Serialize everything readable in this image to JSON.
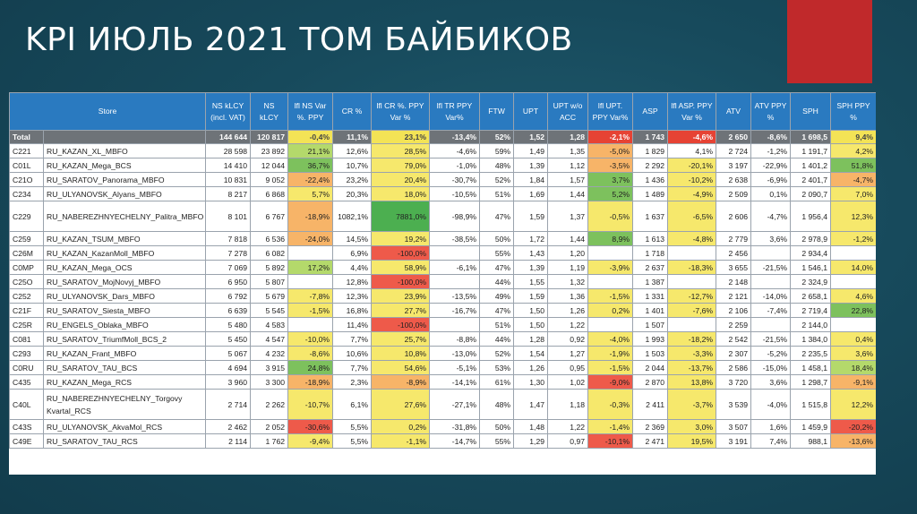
{
  "slide": {
    "title": "KPI ИЮЛЬ 2021 ТОМ БАЙБИКОВ"
  },
  "table": {
    "headers": {
      "store": "Store",
      "ns_lcy_incl_vat": "NS kLCY (incl. VAT)",
      "ns_lcy": "NS kLCY",
      "lfl_ns_var": "lfl NS Var %. PPY",
      "cr": "CR %",
      "lfl_cr": "lfl CR %. PPY Var %",
      "lfl_tr": "lfl TR PPY Var%",
      "ftw": "FTW",
      "upt": "UPT",
      "upt_wo_acc": "UPT w/o ACC",
      "lfl_upt": "lfl UPT. PPY Var%",
      "asp": "ASP",
      "lfl_asp": "lfl ASP. PPY Var %",
      "atv": "ATV",
      "atv_ppy": "ATV PPY %",
      "sph": "SPH",
      "sph_ppy": "SPH PPY %"
    },
    "rows": [
      {
        "code": "Total",
        "store": "",
        "ns_vat": "144 644",
        "ns": "120 817",
        "lfl_ns": "-0,4%",
        "cr": "11,1%",
        "lfl_cr": "23,1%",
        "lfl_tr": "-13,4%",
        "ftw": "52%",
        "upt": "1,52",
        "upt_wo": "1,28",
        "lfl_upt": "-2,1%",
        "asp": "1 743",
        "lfl_asp": "-4,6%",
        "atv": "2 650",
        "atv_ppy": "-8,6%",
        "sph": "1 698,5",
        "sph_ppy": "9,4%"
      },
      {
        "code": "C221",
        "store": "RU_KAZAN_XL_MBFO",
        "ns_vat": "28 598",
        "ns": "23 892",
        "lfl_ns": "21,1%",
        "cr": "12,6%",
        "lfl_cr": "28,5%",
        "lfl_tr": "-4,6%",
        "ftw": "59%",
        "upt": "1,49",
        "upt_wo": "1,35",
        "lfl_upt": "-5,0%",
        "asp": "1 829",
        "lfl_asp": "4,1%",
        "atv": "2 724",
        "atv_ppy": "-1,2%",
        "sph": "1 191,7",
        "sph_ppy": "4,2%"
      },
      {
        "code": "C01L",
        "store": "RU_KAZAN_Mega_BCS",
        "ns_vat": "14 410",
        "ns": "12 044",
        "lfl_ns": "36,7%",
        "cr": "10,7%",
        "lfl_cr": "79,0%",
        "lfl_tr": "-1,0%",
        "ftw": "48%",
        "upt": "1,39",
        "upt_wo": "1,12",
        "lfl_upt": "-3,5%",
        "asp": "2 292",
        "lfl_asp": "-20,1%",
        "atv": "3 197",
        "atv_ppy": "-22,9%",
        "sph": "1 401,2",
        "sph_ppy": "51,8%"
      },
      {
        "code": "C21O",
        "store": "RU_SARATOV_Panorama_MBFO",
        "ns_vat": "10 831",
        "ns": "9 052",
        "lfl_ns": "-22,4%",
        "cr": "23,2%",
        "lfl_cr": "20,4%",
        "lfl_tr": "-30,7%",
        "ftw": "52%",
        "upt": "1,84",
        "upt_wo": "1,57",
        "lfl_upt": "3,7%",
        "asp": "1 436",
        "lfl_asp": "-10,2%",
        "atv": "2 638",
        "atv_ppy": "-6,9%",
        "sph": "2 401,7",
        "sph_ppy": "-4,7%"
      },
      {
        "code": "C234",
        "store": "RU_ULYANOVSK_Alyans_MBFO",
        "ns_vat": "8 217",
        "ns": "6 868",
        "lfl_ns": "5,7%",
        "cr": "20,3%",
        "lfl_cr": "18,0%",
        "lfl_tr": "-10,5%",
        "ftw": "51%",
        "upt": "1,69",
        "upt_wo": "1,44",
        "lfl_upt": "5,2%",
        "asp": "1 489",
        "lfl_asp": "-4,9%",
        "atv": "2 509",
        "atv_ppy": "0,1%",
        "sph": "2 090,7",
        "sph_ppy": "7,0%"
      },
      {
        "code": "C229",
        "store": "RU_NABEREZHNYECHELNY_Palitra_MBFO",
        "ns_vat": "8 101",
        "ns": "6 767",
        "lfl_ns": "-18,9%",
        "cr": "1082,1%",
        "lfl_cr": "7881,0%",
        "lfl_tr": "-98,9%",
        "ftw": "47%",
        "upt": "1,59",
        "upt_wo": "1,37",
        "lfl_upt": "-0,5%",
        "asp": "1 637",
        "lfl_asp": "-6,5%",
        "atv": "2 606",
        "atv_ppy": "-4,7%",
        "sph": "1 956,4",
        "sph_ppy": "12,3%"
      },
      {
        "code": "C259",
        "store": "RU_KAZAN_TSUM_MBFO",
        "ns_vat": "7 818",
        "ns": "6 536",
        "lfl_ns": "-24,0%",
        "cr": "14,5%",
        "lfl_cr": "19,2%",
        "lfl_tr": "-38,5%",
        "ftw": "50%",
        "upt": "1,72",
        "upt_wo": "1,44",
        "lfl_upt": "8,9%",
        "asp": "1 613",
        "lfl_asp": "-4,8%",
        "atv": "2 779",
        "atv_ppy": "3,6%",
        "sph": "2 978,9",
        "sph_ppy": "-1,2%"
      },
      {
        "code": "C26M",
        "store": "RU_KAZAN_KazanMoll_MBFO",
        "ns_vat": "7 278",
        "ns": "6 082",
        "lfl_ns": "",
        "cr": "6,9%",
        "lfl_cr": "-100,0%",
        "lfl_tr": "",
        "ftw": "55%",
        "upt": "1,43",
        "upt_wo": "1,20",
        "lfl_upt": "",
        "asp": "1 718",
        "lfl_asp": "",
        "atv": "2 456",
        "atv_ppy": "",
        "sph": "2 934,4",
        "sph_ppy": ""
      },
      {
        "code": "C0MP",
        "store": "RU_KAZAN_Mega_OCS",
        "ns_vat": "7 069",
        "ns": "5 892",
        "lfl_ns": "17,2%",
        "cr": "4,4%",
        "lfl_cr": "58,9%",
        "lfl_tr": "-6,1%",
        "ftw": "47%",
        "upt": "1,39",
        "upt_wo": "1,19",
        "lfl_upt": "-3,9%",
        "asp": "2 637",
        "lfl_asp": "-18,3%",
        "atv": "3 655",
        "atv_ppy": "-21,5%",
        "sph": "1 546,1",
        "sph_ppy": "14,0%"
      },
      {
        "code": "C25O",
        "store": "RU_SARATOV_MojNovyj_MBFO",
        "ns_vat": "6 950",
        "ns": "5 807",
        "lfl_ns": "",
        "cr": "12,8%",
        "lfl_cr": "-100,0%",
        "lfl_tr": "",
        "ftw": "44%",
        "upt": "1,55",
        "upt_wo": "1,32",
        "lfl_upt": "",
        "asp": "1 387",
        "lfl_asp": "",
        "atv": "2 148",
        "atv_ppy": "",
        "sph": "2 324,9",
        "sph_ppy": ""
      },
      {
        "code": "C252",
        "store": "RU_ULYANOVSK_Dars_MBFO",
        "ns_vat": "6 792",
        "ns": "5 679",
        "lfl_ns": "-7,8%",
        "cr": "12,3%",
        "lfl_cr": "23,9%",
        "lfl_tr": "-13,5%",
        "ftw": "49%",
        "upt": "1,59",
        "upt_wo": "1,36",
        "lfl_upt": "-1,5%",
        "asp": "1 331",
        "lfl_asp": "-12,7%",
        "atv": "2 121",
        "atv_ppy": "-14,0%",
        "sph": "2 658,1",
        "sph_ppy": "4,6%"
      },
      {
        "code": "C21F",
        "store": "RU_SARATOV_Siesta_MBFO",
        "ns_vat": "6 639",
        "ns": "5 545",
        "lfl_ns": "-1,5%",
        "cr": "16,8%",
        "lfl_cr": "27,7%",
        "lfl_tr": "-16,7%",
        "ftw": "47%",
        "upt": "1,50",
        "upt_wo": "1,26",
        "lfl_upt": "0,2%",
        "asp": "1 401",
        "lfl_asp": "-7,6%",
        "atv": "2 106",
        "atv_ppy": "-7,4%",
        "sph": "2 719,4",
        "sph_ppy": "22,8%"
      },
      {
        "code": "C25R",
        "store": "RU_ENGELS_Oblaka_MBFO",
        "ns_vat": "5 480",
        "ns": "4 583",
        "lfl_ns": "",
        "cr": "11,4%",
        "lfl_cr": "-100,0%",
        "lfl_tr": "",
        "ftw": "51%",
        "upt": "1,50",
        "upt_wo": "1,22",
        "lfl_upt": "",
        "asp": "1 507",
        "lfl_asp": "",
        "atv": "2 259",
        "atv_ppy": "",
        "sph": "2 144,0",
        "sph_ppy": ""
      },
      {
        "code": "C081",
        "store": "RU_SARATOV_TriumfMoll_BCS_2",
        "ns_vat": "5 450",
        "ns": "4 547",
        "lfl_ns": "-10,0%",
        "cr": "7,7%",
        "lfl_cr": "25,7%",
        "lfl_tr": "-8,8%",
        "ftw": "44%",
        "upt": "1,28",
        "upt_wo": "0,92",
        "lfl_upt": "-4,0%",
        "asp": "1 993",
        "lfl_asp": "-18,2%",
        "atv": "2 542",
        "atv_ppy": "-21,5%",
        "sph": "1 384,0",
        "sph_ppy": "0,4%"
      },
      {
        "code": "C293",
        "store": "RU_KAZAN_Frant_MBFO",
        "ns_vat": "5 067",
        "ns": "4 232",
        "lfl_ns": "-8,6%",
        "cr": "10,6%",
        "lfl_cr": "10,8%",
        "lfl_tr": "-13,0%",
        "ftw": "52%",
        "upt": "1,54",
        "upt_wo": "1,27",
        "lfl_upt": "-1,9%",
        "asp": "1 503",
        "lfl_asp": "-3,3%",
        "atv": "2 307",
        "atv_ppy": "-5,2%",
        "sph": "2 235,5",
        "sph_ppy": "3,6%"
      },
      {
        "code": "C0RU",
        "store": "RU_SARATOV_TAU_BCS",
        "ns_vat": "4 694",
        "ns": "3 915",
        "lfl_ns": "24,8%",
        "cr": "7,7%",
        "lfl_cr": "54,6%",
        "lfl_tr": "-5,1%",
        "ftw": "53%",
        "upt": "1,26",
        "upt_wo": "0,95",
        "lfl_upt": "-1,5%",
        "asp": "2 044",
        "lfl_asp": "-13,7%",
        "atv": "2 586",
        "atv_ppy": "-15,0%",
        "sph": "1 458,1",
        "sph_ppy": "18,4%"
      },
      {
        "code": "C435",
        "store": "RU_KAZAN_Mega_RCS",
        "ns_vat": "3 960",
        "ns": "3 300",
        "lfl_ns": "-18,9%",
        "cr": "2,3%",
        "lfl_cr": "-8,9%",
        "lfl_tr": "-14,1%",
        "ftw": "61%",
        "upt": "1,30",
        "upt_wo": "1,02",
        "lfl_upt": "-9,0%",
        "asp": "2 870",
        "lfl_asp": "13,8%",
        "atv": "3 720",
        "atv_ppy": "3,6%",
        "sph": "1 298,7",
        "sph_ppy": "-9,1%"
      },
      {
        "code": "C40L",
        "store": "RU_NABEREZHNYECHELNY_Torgovy Kvartal_RCS",
        "ns_vat": "2 714",
        "ns": "2 262",
        "lfl_ns": "-10,7%",
        "cr": "6,1%",
        "lfl_cr": "27,6%",
        "lfl_tr": "-27,1%",
        "ftw": "48%",
        "upt": "1,47",
        "upt_wo": "1,18",
        "lfl_upt": "-0,3%",
        "asp": "2 411",
        "lfl_asp": "-3,7%",
        "atv": "3 539",
        "atv_ppy": "-4,0%",
        "sph": "1 515,8",
        "sph_ppy": "12,2%"
      },
      {
        "code": "C43S",
        "store": "RU_ULYANOVSK_AkvaMol_RCS",
        "ns_vat": "2 462",
        "ns": "2 052",
        "lfl_ns": "-30,6%",
        "cr": "5,5%",
        "lfl_cr": "0,2%",
        "lfl_tr": "-31,8%",
        "ftw": "50%",
        "upt": "1,48",
        "upt_wo": "1,22",
        "lfl_upt": "-1,4%",
        "asp": "2 369",
        "lfl_asp": "3,0%",
        "atv": "3 507",
        "atv_ppy": "1,6%",
        "sph": "1 459,9",
        "sph_ppy": "-20,2%"
      },
      {
        "code": "C49E",
        "store": "RU_SARATOV_TAU_RCS",
        "ns_vat": "2 114",
        "ns": "1 762",
        "lfl_ns": "-9,4%",
        "cr": "5,5%",
        "lfl_cr": "-1,1%",
        "lfl_tr": "-14,7%",
        "ftw": "55%",
        "upt": "1,29",
        "upt_wo": "0,97",
        "lfl_upt": "-10,1%",
        "asp": "2 471",
        "lfl_asp": "19,5%",
        "atv": "3 191",
        "atv_ppy": "7,4%",
        "sph": "988,1",
        "sph_ppy": "-13,6%"
      }
    ]
  },
  "colors": {
    "header_bg": "#2a7ac0",
    "total_row_bg": "#6e7378",
    "accent_block": "#c0292b",
    "background": "#174a5c"
  }
}
